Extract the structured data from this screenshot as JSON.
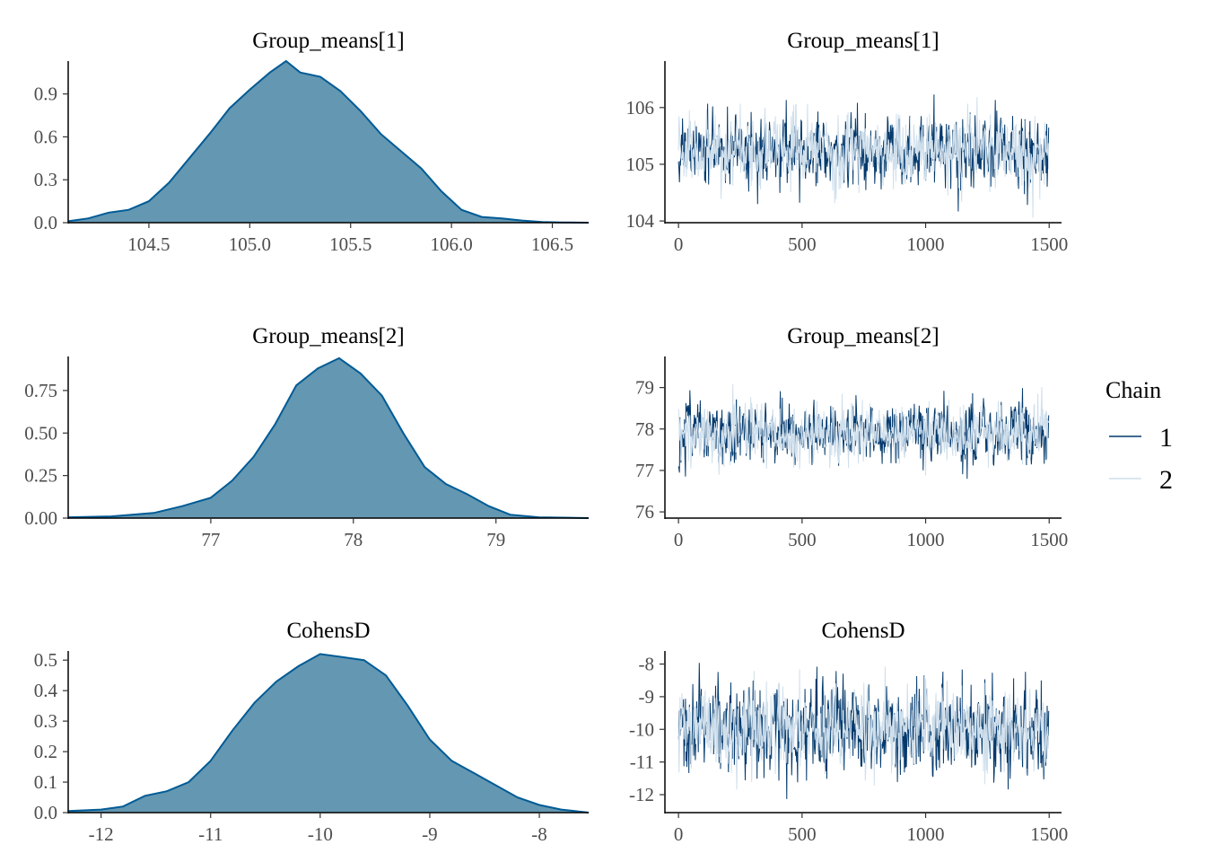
{
  "chart_data": [
    {
      "type": "area",
      "title": "Group_means[1]",
      "xlim": [
        104.1,
        106.68
      ],
      "ylim": [
        0,
        1.13
      ],
      "xticks": [
        104.5,
        105.0,
        105.5,
        106.0,
        106.5
      ],
      "xtick_labels": [
        "104.5",
        "105.0",
        "105.5",
        "106.0",
        "106.5"
      ],
      "yticks": [
        0,
        0.3,
        0.6,
        0.9
      ],
      "ytick_labels": [
        "0.0",
        "0.3",
        "0.6",
        "0.9"
      ],
      "x": [
        104.1,
        104.2,
        104.3,
        104.4,
        104.5,
        104.6,
        104.7,
        104.8,
        104.9,
        105.0,
        105.1,
        105.18,
        105.25,
        105.35,
        105.45,
        105.55,
        105.65,
        105.75,
        105.85,
        105.95,
        106.05,
        106.15,
        106.25,
        106.35,
        106.45,
        106.55,
        106.68
      ],
      "y": [
        0.01,
        0.03,
        0.07,
        0.09,
        0.15,
        0.28,
        0.45,
        0.62,
        0.8,
        0.93,
        1.05,
        1.13,
        1.05,
        1.02,
        0.92,
        0.78,
        0.62,
        0.5,
        0.38,
        0.22,
        0.09,
        0.04,
        0.03,
        0.015,
        0.005,
        0.002,
        0.0
      ]
    },
    {
      "type": "line",
      "title": "Group_means[1]",
      "xlim": [
        -55,
        1550
      ],
      "ylim": [
        103.97,
        106.82
      ],
      "xticks": [
        0,
        500,
        1000,
        1500
      ],
      "xtick_labels": [
        "0",
        "500",
        "1000",
        "1500"
      ],
      "yticks": [
        104,
        105,
        106
      ],
      "ytick_labels": [
        "104",
        "105",
        "106"
      ],
      "n": 1500,
      "mean": 105.25,
      "sd": 0.36,
      "series": [
        {
          "name": "1",
          "color": "#03396c"
        },
        {
          "name": "2",
          "color": "#cfdfec"
        }
      ]
    },
    {
      "type": "area",
      "title": "Group_means[2]",
      "xlim": [
        76.0,
        79.65
      ],
      "ylim": [
        0,
        0.95
      ],
      "xticks": [
        77,
        78,
        79
      ],
      "xtick_labels": [
        "77",
        "78",
        "79"
      ],
      "yticks": [
        0,
        0.25,
        0.5,
        0.75
      ],
      "ytick_labels": [
        "0.00",
        "0.25",
        "0.50",
        "0.75"
      ],
      "x": [
        76.0,
        76.3,
        76.6,
        76.8,
        77.0,
        77.15,
        77.3,
        77.45,
        77.6,
        77.75,
        77.9,
        78.05,
        78.2,
        78.35,
        78.5,
        78.65,
        78.8,
        78.95,
        79.1,
        79.3,
        79.65
      ],
      "y": [
        0.005,
        0.01,
        0.03,
        0.07,
        0.12,
        0.22,
        0.36,
        0.55,
        0.78,
        0.88,
        0.94,
        0.85,
        0.72,
        0.5,
        0.3,
        0.2,
        0.14,
        0.07,
        0.02,
        0.005,
        0.0
      ]
    },
    {
      "type": "line",
      "title": "Group_means[2]",
      "xlim": [
        -55,
        1550
      ],
      "ylim": [
        75.85,
        79.75
      ],
      "xticks": [
        0,
        500,
        1000,
        1500
      ],
      "xtick_labels": [
        "0",
        "500",
        "1000",
        "1500"
      ],
      "yticks": [
        76,
        77,
        78,
        79
      ],
      "ytick_labels": [
        "76",
        "77",
        "78",
        "79"
      ],
      "n": 1500,
      "mean": 77.9,
      "sd": 0.42,
      "series": [
        {
          "name": "1",
          "color": "#03396c"
        },
        {
          "name": "2",
          "color": "#cfdfec"
        }
      ]
    },
    {
      "type": "area",
      "title": "CohensD",
      "xlim": [
        -12.3,
        -7.55
      ],
      "ylim": [
        0,
        0.53
      ],
      "xticks": [
        -12,
        -11,
        -10,
        -9,
        -8
      ],
      "xtick_labels": [
        "-12",
        "-11",
        "-10",
        "-9",
        "-8"
      ],
      "yticks": [
        0,
        0.1,
        0.2,
        0.3,
        0.4,
        0.5
      ],
      "ytick_labels": [
        "0.0",
        "0.1",
        "0.2",
        "0.3",
        "0.4",
        "0.5"
      ],
      "x": [
        -12.3,
        -12.0,
        -11.8,
        -11.6,
        -11.4,
        -11.2,
        -11.0,
        -10.8,
        -10.6,
        -10.4,
        -10.2,
        -10.0,
        -9.8,
        -9.6,
        -9.4,
        -9.2,
        -9.0,
        -8.8,
        -8.6,
        -8.4,
        -8.2,
        -8.0,
        -7.8,
        -7.55
      ],
      "y": [
        0.005,
        0.01,
        0.02,
        0.055,
        0.07,
        0.1,
        0.17,
        0.27,
        0.36,
        0.43,
        0.48,
        0.52,
        0.51,
        0.5,
        0.45,
        0.35,
        0.24,
        0.17,
        0.13,
        0.09,
        0.05,
        0.025,
        0.01,
        0.0
      ]
    },
    {
      "type": "line",
      "title": "CohensD",
      "xlim": [
        -55,
        1550
      ],
      "ylim": [
        -12.55,
        -7.6
      ],
      "xticks": [
        0,
        500,
        1000,
        1500
      ],
      "xtick_labels": [
        "0",
        "500",
        "1000",
        "1500"
      ],
      "yticks": [
        -12,
        -11,
        -10,
        -9,
        -8
      ],
      "ytick_labels": [
        "-12",
        "-11",
        "-10",
        "-9",
        "-8"
      ],
      "n": 1500,
      "mean": -9.95,
      "sd": 0.75,
      "series": [
        {
          "name": "1",
          "color": "#03396c"
        },
        {
          "name": "2",
          "color": "#cfdfec"
        }
      ]
    }
  ],
  "legend": {
    "title": "Chain",
    "items": [
      {
        "label": "1",
        "color": "#03396c"
      },
      {
        "label": "2",
        "color": "#cfdfec"
      }
    ]
  },
  "colors": {
    "density_fill": "#6497b1",
    "density_line": "#005b96"
  }
}
